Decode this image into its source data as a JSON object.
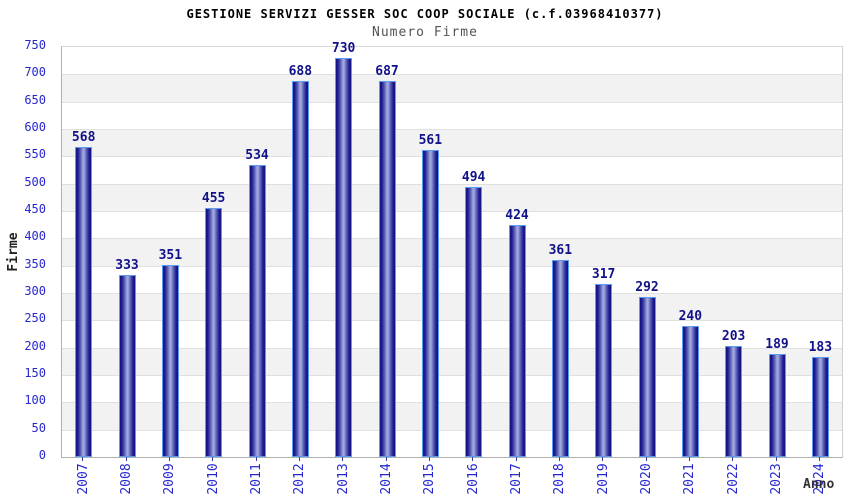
{
  "chart_data": {
    "type": "bar",
    "title": "GESTIONE SERVIZI GESSER SOC COOP SOCIALE (c.f.03968410377)",
    "subtitle": "Numero Firme",
    "xlabel": "Anno",
    "ylabel": "Firme",
    "categories": [
      "2007",
      "2008",
      "2009",
      "2010",
      "2011",
      "2012",
      "2013",
      "2014",
      "2015",
      "2016",
      "2017",
      "2018",
      "2019",
      "2020",
      "2021",
      "2022",
      "2023",
      "2024"
    ],
    "values": [
      568,
      333,
      351,
      455,
      534,
      688,
      730,
      687,
      561,
      494,
      424,
      361,
      317,
      292,
      240,
      203,
      189,
      183
    ],
    "ylim": [
      0,
      750
    ],
    "ytick_step": 50,
    "grid": "horizontal-bands-alternating",
    "legend": null,
    "colors": {
      "tick_label": "#2727cf",
      "value_label": "#11118a",
      "bar_edge_dark": "#141484",
      "bar_center_light": "#a2a8de",
      "bar_border": "#5b9bf0",
      "band_gray": "#f2f2f2",
      "band_white": "#ffffff",
      "gridline": "#e0e0e0",
      "title": "#000000",
      "subtitle": "#555555"
    }
  }
}
